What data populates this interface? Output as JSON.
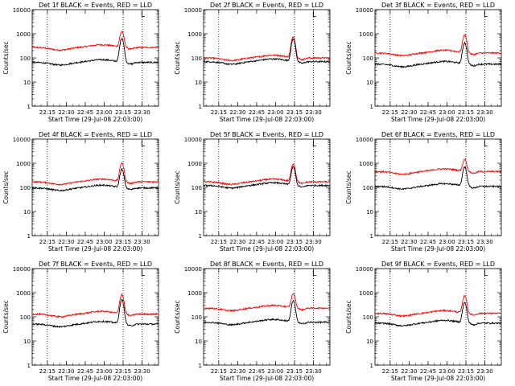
{
  "colors": {
    "events": "#000000",
    "lld": "#ff0000",
    "background": "#ffffff"
  },
  "chart_data": [
    {
      "type": "line",
      "title": "Det 1f BLACK = Events, RED = LLD",
      "corner_mark": "L",
      "xlabel": "Start Time (29-Jul-08 22:03:00)",
      "ylabel": "Counts/sec",
      "x_ticks": [
        "22:15",
        "22:30",
        "22:45",
        "23:00",
        "23:15",
        "23:30"
      ],
      "y_ticks": [
        "1",
        "10",
        "100",
        "1000",
        "10000"
      ],
      "y_scale": "log",
      "ylim": [
        1,
        10000
      ],
      "xlim": [
        "22:03",
        "23:43"
      ],
      "vlines": [
        "22:15",
        "23:15",
        "23:30"
      ],
      "flare_peak": "23:14",
      "series": [
        {
          "name": "Events",
          "color": "#000000",
          "baseline": 65,
          "peak": 650
        },
        {
          "name": "LLD",
          "color": "#ff0000",
          "baseline": 270,
          "peak": 1250
        }
      ]
    },
    {
      "type": "line",
      "title": "Det 2f BLACK = Events, RED = LLD",
      "corner_mark": "L",
      "xlabel": "Start Time (29-Jul-08 22:03:00)",
      "ylabel": "Counts/sec",
      "x_ticks": [
        "22:15",
        "22:30",
        "22:45",
        "23:00",
        "23:15",
        "23:30"
      ],
      "y_ticks": [
        "1",
        "10",
        "100",
        "1000",
        "10000"
      ],
      "y_scale": "log",
      "ylim": [
        1,
        10000
      ],
      "xlim": [
        "22:03",
        "23:43"
      ],
      "vlines": [
        "22:15",
        "23:15",
        "23:30"
      ],
      "flare_peak": "23:14",
      "series": [
        {
          "name": "Events",
          "color": "#000000",
          "baseline": 70,
          "peak": 600
        },
        {
          "name": "LLD",
          "color": "#ff0000",
          "baseline": 100,
          "peak": 750
        }
      ]
    },
    {
      "type": "line",
      "title": "Det 3f BLACK = Events, RED = LLD",
      "corner_mark": "L",
      "xlabel": "Start Time (29-Jul-08 22:03:00)",
      "ylabel": "Counts/sec",
      "x_ticks": [
        "22:15",
        "22:30",
        "22:45",
        "23:00",
        "23:15",
        "23:30"
      ],
      "y_ticks": [
        "1",
        "10",
        "100",
        "1000",
        "10000"
      ],
      "y_scale": "log",
      "ylim": [
        1,
        10000
      ],
      "xlim": [
        "22:03",
        "23:43"
      ],
      "vlines": [
        "22:15",
        "23:15",
        "23:30"
      ],
      "flare_peak": "23:14",
      "series": [
        {
          "name": "Events",
          "color": "#000000",
          "baseline": 55,
          "peak": 420
        },
        {
          "name": "LLD",
          "color": "#ff0000",
          "baseline": 160,
          "peak": 900
        }
      ]
    },
    {
      "type": "line",
      "title": "Det 4f BLACK = Events, RED = LLD",
      "corner_mark": "L",
      "xlabel": "Start Time (29-Jul-08 22:03:00)",
      "ylabel": "Counts/sec",
      "x_ticks": [
        "22:15",
        "22:30",
        "22:45",
        "23:00",
        "23:15",
        "23:30"
      ],
      "y_ticks": [
        "1",
        "10",
        "100",
        "1000",
        "10000"
      ],
      "y_scale": "log",
      "ylim": [
        1,
        10000
      ],
      "xlim": [
        "22:03",
        "23:43"
      ],
      "vlines": [
        "22:15",
        "23:15",
        "23:30"
      ],
      "flare_peak": "23:14",
      "series": [
        {
          "name": "Events",
          "color": "#000000",
          "baseline": 95,
          "peak": 550
        },
        {
          "name": "LLD",
          "color": "#ff0000",
          "baseline": 170,
          "peak": 1050
        }
      ]
    },
    {
      "type": "line",
      "title": "Det 5f BLACK = Events, RED = LLD",
      "corner_mark": "L",
      "xlabel": "Start Time (29-Jul-08 22:03:00)",
      "ylabel": "Counts/sec",
      "x_ticks": [
        "22:15",
        "22:30",
        "22:45",
        "23:00",
        "23:15",
        "23:30"
      ],
      "y_ticks": [
        "1",
        "10",
        "100",
        "1000",
        "10000"
      ],
      "y_scale": "log",
      "ylim": [
        1,
        10000
      ],
      "xlim": [
        "22:03",
        "23:43"
      ],
      "vlines": [
        "22:15",
        "23:15",
        "23:30"
      ],
      "flare_peak": "23:14",
      "series": [
        {
          "name": "Events",
          "color": "#000000",
          "baseline": 120,
          "peak": 700
        },
        {
          "name": "LLD",
          "color": "#ff0000",
          "baseline": 170,
          "peak": 950
        }
      ]
    },
    {
      "type": "line",
      "title": "Det 6f BLACK = Events, RED = LLD",
      "corner_mark": "L",
      "xlabel": "Start Time (29-Jul-08 22:03:00)",
      "ylabel": "Counts/sec",
      "x_ticks": [
        "22:15",
        "22:30",
        "22:45",
        "23:00",
        "23:15",
        "23:30"
      ],
      "y_ticks": [
        "1",
        "10",
        "100",
        "1000",
        "10000"
      ],
      "y_scale": "log",
      "ylim": [
        1,
        10000
      ],
      "xlim": [
        "22:03",
        "23:43"
      ],
      "vlines": [
        "22:15",
        "23:15",
        "23:30"
      ],
      "flare_peak": "23:14",
      "series": [
        {
          "name": "Events",
          "color": "#000000",
          "baseline": 110,
          "peak": 700
        },
        {
          "name": "LLD",
          "color": "#ff0000",
          "baseline": 450,
          "peak": 1450
        }
      ]
    },
    {
      "type": "line",
      "title": "Det 7f BLACK = Events, RED = LLD",
      "corner_mark": "L",
      "xlabel": "Start Time (29-Jul-08 22:03:00)",
      "ylabel": "Counts/sec",
      "x_ticks": [
        "22:15",
        "22:30",
        "22:45",
        "23:00",
        "23:15",
        "23:30"
      ],
      "y_ticks": [
        "1",
        "10",
        "100",
        "1000",
        "10000"
      ],
      "y_scale": "log",
      "ylim": [
        1,
        10000
      ],
      "xlim": [
        "22:03",
        "23:43"
      ],
      "vlines": [
        "22:15",
        "23:15",
        "23:30"
      ],
      "flare_peak": "23:14",
      "series": [
        {
          "name": "Events",
          "color": "#000000",
          "baseline": 50,
          "peak": 500
        },
        {
          "name": "LLD",
          "color": "#ff0000",
          "baseline": 130,
          "peak": 850
        }
      ]
    },
    {
      "type": "line",
      "title": "Det 8f BLACK = Events, RED = LLD",
      "corner_mark": "L",
      "xlabel": "Start Time (29-Jul-08 22:03:00)",
      "ylabel": "Counts/sec",
      "x_ticks": [
        "22:15",
        "22:30",
        "22:45",
        "23:00",
        "23:15",
        "23:30"
      ],
      "y_ticks": [
        "1",
        "10",
        "100",
        "1000",
        "10000"
      ],
      "y_scale": "log",
      "ylim": [
        1,
        10000
      ],
      "xlim": [
        "22:03",
        "23:43"
      ],
      "vlines": [
        "22:15",
        "23:15",
        "23:30"
      ],
      "flare_peak": "23:14",
      "series": [
        {
          "name": "Events",
          "color": "#000000",
          "baseline": 60,
          "peak": 450
        },
        {
          "name": "LLD",
          "color": "#ff0000",
          "baseline": 230,
          "peak": 900
        }
      ]
    },
    {
      "type": "line",
      "title": "Det 9f BLACK = Events, RED = LLD",
      "corner_mark": "L",
      "xlabel": "Start Time (29-Jul-08 22:03:00)",
      "ylabel": "Counts/sec",
      "x_ticks": [
        "22:15",
        "22:30",
        "22:45",
        "23:00",
        "23:15",
        "23:30"
      ],
      "y_ticks": [
        "1",
        "10",
        "100",
        "1000",
        "10000"
      ],
      "y_scale": "log",
      "ylim": [
        1,
        10000
      ],
      "xlim": [
        "22:03",
        "23:43"
      ],
      "vlines": [
        "22:15",
        "23:15",
        "23:30"
      ],
      "flare_peak": "23:14",
      "series": [
        {
          "name": "Events",
          "color": "#000000",
          "baseline": 55,
          "peak": 380
        },
        {
          "name": "LLD",
          "color": "#ff0000",
          "baseline": 140,
          "peak": 750
        }
      ]
    }
  ]
}
